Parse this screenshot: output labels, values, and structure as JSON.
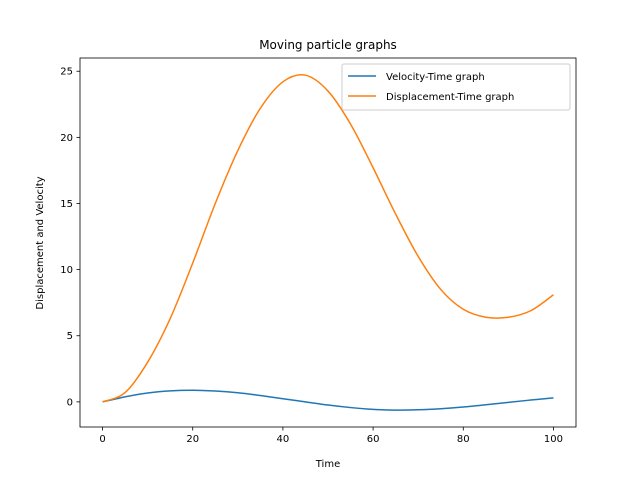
{
  "chart_data": {
    "type": "line",
    "title": "Moving particle graphs",
    "xlabel": "Time",
    "ylabel": "Displacement and Velocity",
    "xlim": [
      -5,
      105
    ],
    "ylim": [
      -1.9,
      26.0
    ],
    "xticks": [
      0,
      20,
      40,
      60,
      80,
      100
    ],
    "yticks": [
      0,
      5,
      10,
      15,
      20,
      25
    ],
    "grid": false,
    "legend_position": "top-right",
    "x": [
      0,
      5,
      10,
      15,
      20,
      25,
      30,
      35,
      40,
      45,
      50,
      55,
      60,
      65,
      70,
      75,
      80,
      85,
      90,
      95,
      100
    ],
    "series": [
      {
        "name": "Velocity-Time graph",
        "color": "#1f77b4",
        "values": [
          0.0,
          0.38,
          0.67,
          0.83,
          0.88,
          0.82,
          0.69,
          0.48,
          0.24,
          0.0,
          -0.24,
          -0.43,
          -0.57,
          -0.62,
          -0.6,
          -0.52,
          -0.39,
          -0.22,
          -0.04,
          0.14,
          0.3
        ]
      },
      {
        "name": "Displacement-Time graph",
        "color": "#ff7f0e",
        "values": [
          0.0,
          0.7,
          3.0,
          6.3,
          10.5,
          15.0,
          19.0,
          22.2,
          24.2,
          24.7,
          23.5,
          21.0,
          17.7,
          14.2,
          11.0,
          8.5,
          7.0,
          6.4,
          6.4,
          6.9,
          8.1
        ]
      }
    ]
  }
}
